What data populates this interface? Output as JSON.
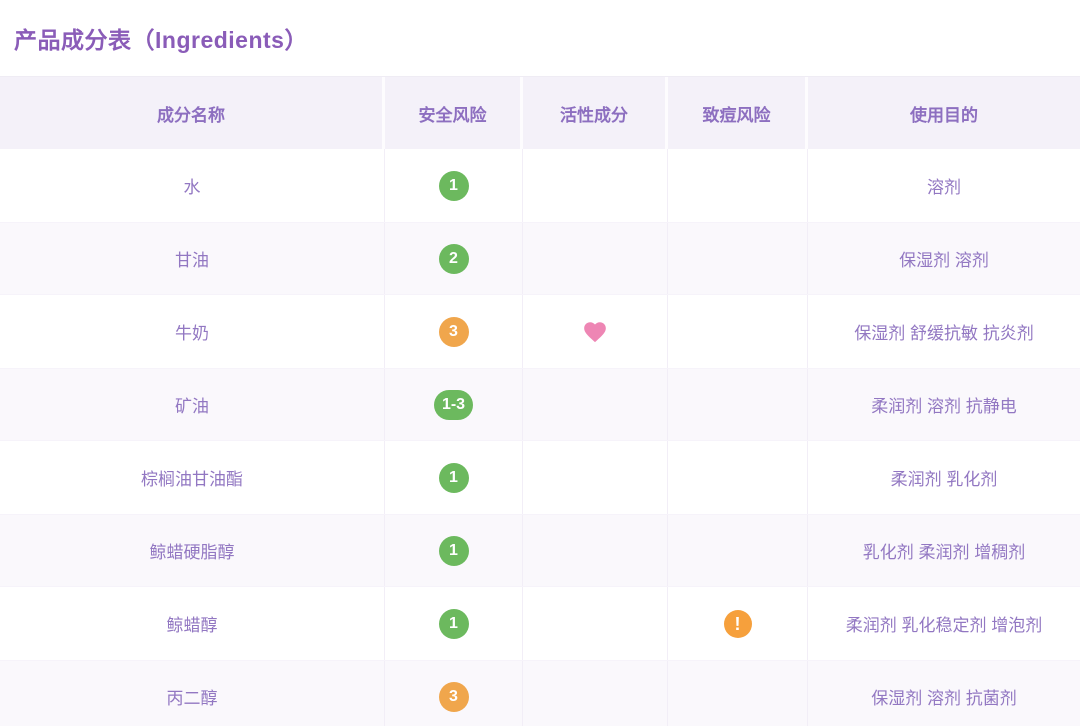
{
  "page": {
    "title": "产品成分表（Ingredients）"
  },
  "table": {
    "columns": [
      {
        "key": "name",
        "label": "成分名称"
      },
      {
        "key": "safety",
        "label": "安全风险"
      },
      {
        "key": "active",
        "label": "活性成分"
      },
      {
        "key": "acne",
        "label": "致痘风险"
      },
      {
        "key": "purpose",
        "label": "使用目的"
      }
    ],
    "rows": [
      {
        "name": "水",
        "safety": {
          "value": "1",
          "level": "green"
        },
        "active": false,
        "acne": false,
        "purpose": "溶剂"
      },
      {
        "name": "甘油",
        "safety": {
          "value": "2",
          "level": "green"
        },
        "active": false,
        "acne": false,
        "purpose": "保湿剂 溶剂"
      },
      {
        "name": "牛奶",
        "safety": {
          "value": "3",
          "level": "orange"
        },
        "active": true,
        "acne": false,
        "purpose": "保湿剂 舒缓抗敏 抗炎剂"
      },
      {
        "name": "矿油",
        "safety": {
          "value": "1-3",
          "level": "green"
        },
        "active": false,
        "acne": false,
        "purpose": "柔润剂 溶剂 抗静电"
      },
      {
        "name": "棕榈油甘油酯",
        "safety": {
          "value": "1",
          "level": "green"
        },
        "active": false,
        "acne": false,
        "purpose": "柔润剂 乳化剂"
      },
      {
        "name": "鲸蜡硬脂醇",
        "safety": {
          "value": "1",
          "level": "green"
        },
        "active": false,
        "acne": false,
        "purpose": "乳化剂 柔润剂 增稠剂"
      },
      {
        "name": "鲸蜡醇",
        "safety": {
          "value": "1",
          "level": "green"
        },
        "active": false,
        "acne": true,
        "purpose": "柔润剂 乳化稳定剂 增泡剂"
      },
      {
        "name": "丙二醇",
        "safety": {
          "value": "3",
          "level": "orange"
        },
        "active": false,
        "acne": false,
        "purpose": "保湿剂 溶剂 抗菌剂"
      }
    ]
  },
  "icons": {
    "active_icon": "heart-icon",
    "acne_icon": "warning-icon",
    "acne_glyph": "!"
  },
  "colors": {
    "title_text": "#8a5cb8",
    "header_bg": "#f4f1f9",
    "header_text": "#8d6fc0",
    "body_text": "#9277c2",
    "row_alt_bg": "#faf8fc",
    "badge_green": "#6cb95e",
    "badge_orange": "#f0a64c",
    "heart_pink": "#ee86b4",
    "warning_orange": "#f6a03c"
  }
}
